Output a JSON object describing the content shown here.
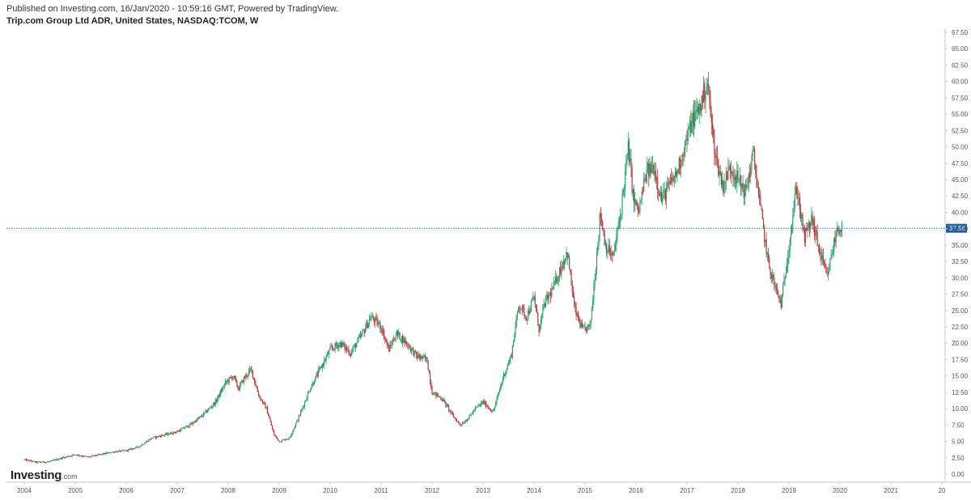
{
  "header": {
    "published": "Published on Investing.com, 16/Jan/2020 - 10:59:16 GMT, Powered by TradingView.",
    "title": "Trip.com Group Ltd ADR, United States, NASDAQ:TCOM, W"
  },
  "logo": {
    "main": "Investing",
    "suffix": ".com"
  },
  "colors": {
    "up": "#26a269",
    "down": "#b33a3a",
    "last_line": "#1f5fa8",
    "last_label_bg": "#1f5fa8",
    "axis": "#c8c8c8"
  },
  "chart_data": {
    "type": "candlestick",
    "interval": "W",
    "x_ticks": [
      "2004",
      "2005",
      "2006",
      "2007",
      "2008",
      "2009",
      "2010",
      "2011",
      "2012",
      "2013",
      "2014",
      "2015",
      "2016",
      "2017",
      "2018",
      "2019",
      "2020",
      "2021",
      "20"
    ],
    "y_ticks": [
      "0.00",
      "2.50",
      "5.00",
      "7.50",
      "10.00",
      "12.50",
      "15.00",
      "17.50",
      "20.00",
      "22.50",
      "25.00",
      "27.50",
      "30.00",
      "32.50",
      "35.00",
      "37.50",
      "40.00",
      "42.50",
      "45.00",
      "47.50",
      "50.00",
      "52.50",
      "55.00",
      "57.50",
      "60.00",
      "62.50",
      "65.00",
      "67.50"
    ],
    "y_range": [
      0,
      67.5
    ],
    "x_range": [
      2004,
      2022
    ],
    "y_axis_position": "right",
    "grid": false,
    "last_price": 37.56,
    "last_price_label": "37.56",
    "series": [
      {
        "x": [
          2004.0,
          2004.25,
          2004.5,
          2004.75,
          2005.0,
          2005.25,
          2005.5,
          2005.75,
          2006.0,
          2006.25,
          2006.5,
          2006.75,
          2007.0,
          2007.25,
          2007.5,
          2007.75,
          2007.95,
          2008.1,
          2008.2,
          2008.3,
          2008.45,
          2008.6,
          2008.75,
          2008.9,
          2009.0,
          2009.2,
          2009.4,
          2009.6,
          2009.8,
          2010.0,
          2010.2,
          2010.4,
          2010.6,
          2010.8,
          2011.0,
          2011.15,
          2011.3,
          2011.5,
          2011.7,
          2011.9,
          2012.0,
          2012.2,
          2012.4,
          2012.55,
          2012.7,
          2012.85,
          2013.0,
          2013.2,
          2013.4,
          2013.55,
          2013.7,
          2013.85,
          2014.0,
          2014.1,
          2014.2,
          2014.35,
          2014.5,
          2014.65,
          2014.8,
          2014.95,
          2015.1,
          2015.2,
          2015.3,
          2015.4,
          2015.55,
          2015.7,
          2015.85,
          2015.95,
          2016.05,
          2016.2,
          2016.35,
          2016.5,
          2016.65,
          2016.8,
          2016.95,
          2017.1,
          2017.25,
          2017.4,
          2017.5,
          2017.58,
          2017.7,
          2017.85,
          2018.0,
          2018.15,
          2018.3,
          2018.45,
          2018.6,
          2018.75,
          2018.85,
          2018.95,
          2019.05,
          2019.15,
          2019.3,
          2019.45,
          2019.6,
          2019.75,
          2019.85,
          2019.95,
          2020.04
        ],
        "close": [
          2.2,
          1.8,
          1.9,
          2.5,
          3.0,
          2.6,
          3.0,
          3.4,
          3.6,
          4.2,
          5.5,
          6.0,
          6.5,
          7.5,
          9.0,
          11.0,
          14.0,
          15.0,
          13.0,
          14.5,
          16.0,
          12.0,
          10.0,
          6.0,
          5.0,
          5.5,
          9.0,
          13.0,
          16.0,
          19.0,
          20.0,
          18.5,
          21.0,
          24.0,
          22.5,
          19.0,
          21.5,
          20.0,
          18.0,
          17.5,
          12.5,
          11.5,
          9.0,
          7.5,
          8.5,
          10.0,
          11.0,
          9.5,
          15.0,
          18.0,
          26.0,
          24.0,
          27.0,
          22.0,
          26.0,
          28.0,
          31.0,
          34.0,
          25.0,
          22.0,
          22.5,
          31.0,
          40.0,
          35.0,
          33.0,
          40.0,
          50.0,
          42.0,
          40.0,
          46.0,
          47.0,
          42.0,
          44.0,
          46.0,
          50.0,
          54.0,
          56.0,
          60.0,
          52.0,
          48.0,
          44.0,
          47.0,
          45.0,
          43.0,
          49.0,
          40.0,
          32.0,
          28.0,
          26.0,
          32.0,
          38.0,
          44.0,
          36.0,
          39.0,
          34.0,
          30.0,
          34.0,
          37.56,
          37.56
        ]
      }
    ]
  }
}
